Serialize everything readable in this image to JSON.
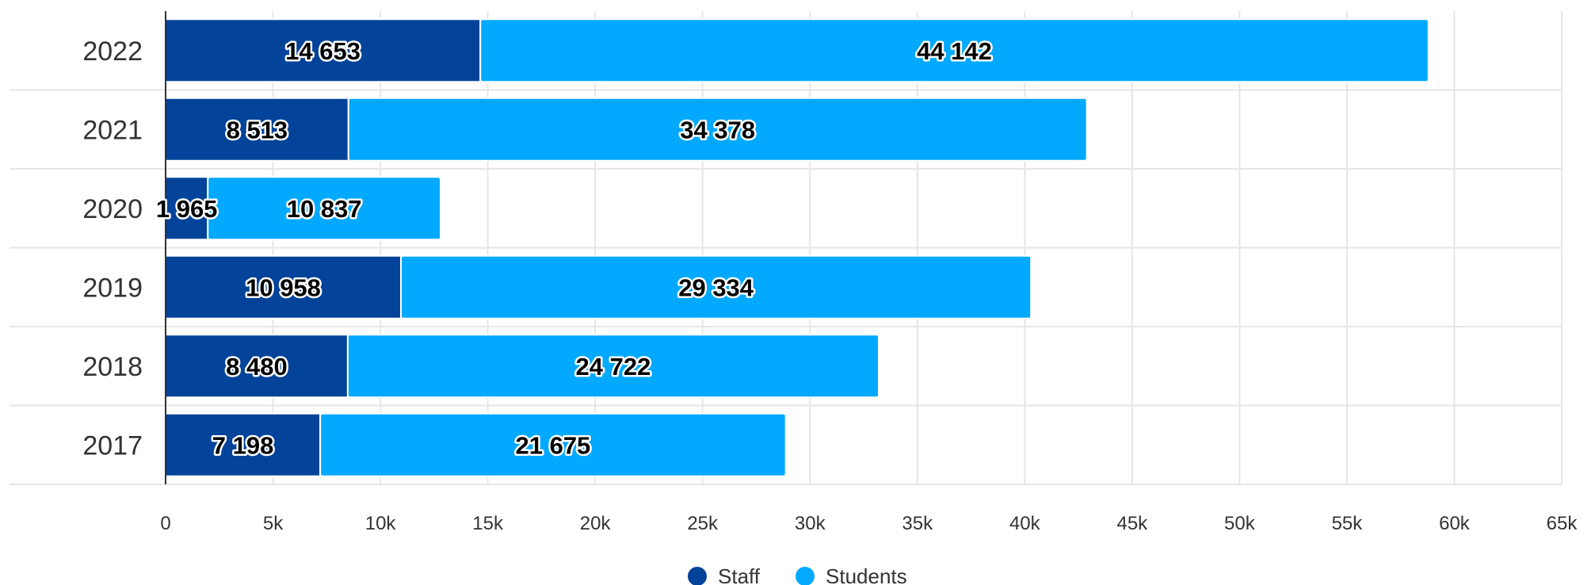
{
  "chart_data": {
    "type": "bar",
    "orientation": "horizontal",
    "stacked": true,
    "categories": [
      "2022",
      "2021",
      "2020",
      "2019",
      "2018",
      "2017"
    ],
    "series": [
      {
        "name": "Staff",
        "color": "#03439a",
        "values": [
          14653,
          8513,
          1965,
          10958,
          8480,
          7198
        ]
      },
      {
        "name": "Students",
        "color": "#03a9ff",
        "values": [
          44142,
          34378,
          10837,
          29334,
          24722,
          21675
        ]
      }
    ],
    "value_labels": [
      [
        "14 653",
        "8 513",
        "1 965",
        "10 958",
        "8 480",
        "7 198"
      ],
      [
        "44 142",
        "34 378",
        "10 837",
        "29 334",
        "24 722",
        "21 675"
      ]
    ],
    "xlim": [
      0,
      65000
    ],
    "x_ticks": [
      0,
      5000,
      10000,
      15000,
      20000,
      25000,
      30000,
      35000,
      40000,
      45000,
      50000,
      55000,
      60000,
      65000
    ],
    "x_tick_labels": [
      "0",
      "5k",
      "10k",
      "15k",
      "20k",
      "25k",
      "30k",
      "35k",
      "40k",
      "45k",
      "50k",
      "55k",
      "60k",
      "65k"
    ],
    "grid": true,
    "legend": "bottom-center",
    "title": "",
    "xlabel": "",
    "ylabel": ""
  }
}
